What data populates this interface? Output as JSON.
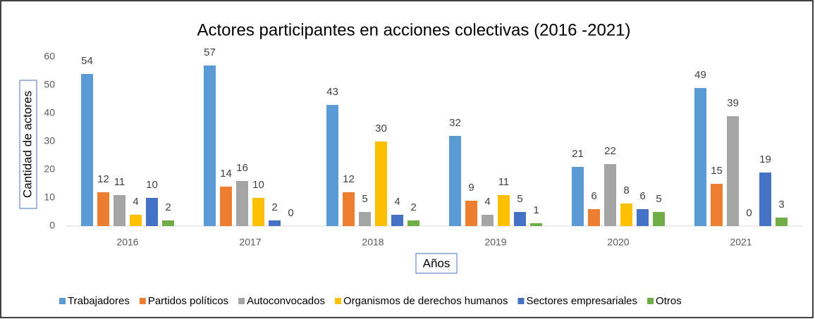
{
  "chart_data": {
    "type": "bar",
    "title": "Actores participantes en acciones colectivas (2016 -2021)",
    "x_label": "Años",
    "y_label": "Cantidad de actores",
    "categories": [
      "2016",
      "2017",
      "2018",
      "2019",
      "2020",
      "2021"
    ],
    "series": [
      {
        "name": "Trabajadores",
        "color": "#5B9BD5",
        "values": [
          54,
          57,
          43,
          32,
          21,
          49
        ]
      },
      {
        "name": "Partidos políticos",
        "color": "#ED7D31",
        "values": [
          12,
          14,
          12,
          9,
          6,
          15
        ]
      },
      {
        "name": "Autoconvocados",
        "color": "#A5A5A5",
        "values": [
          11,
          16,
          5,
          4,
          22,
          39
        ]
      },
      {
        "name": "Organismos de derechos humanos",
        "color": "#FFC000",
        "values": [
          4,
          10,
          30,
          11,
          8,
          0
        ]
      },
      {
        "name": "Sectores empresariales",
        "color": "#4472C4",
        "values": [
          10,
          2,
          4,
          5,
          6,
          19
        ]
      },
      {
        "name": "Otros",
        "color": "#70AD47",
        "values": [
          2,
          0,
          2,
          1,
          5,
          3
        ]
      }
    ],
    "ylim": [
      0,
      60
    ],
    "yticks": [
      0,
      10,
      20,
      30,
      40,
      50,
      60
    ],
    "grid": false,
    "legend": "bottom"
  }
}
